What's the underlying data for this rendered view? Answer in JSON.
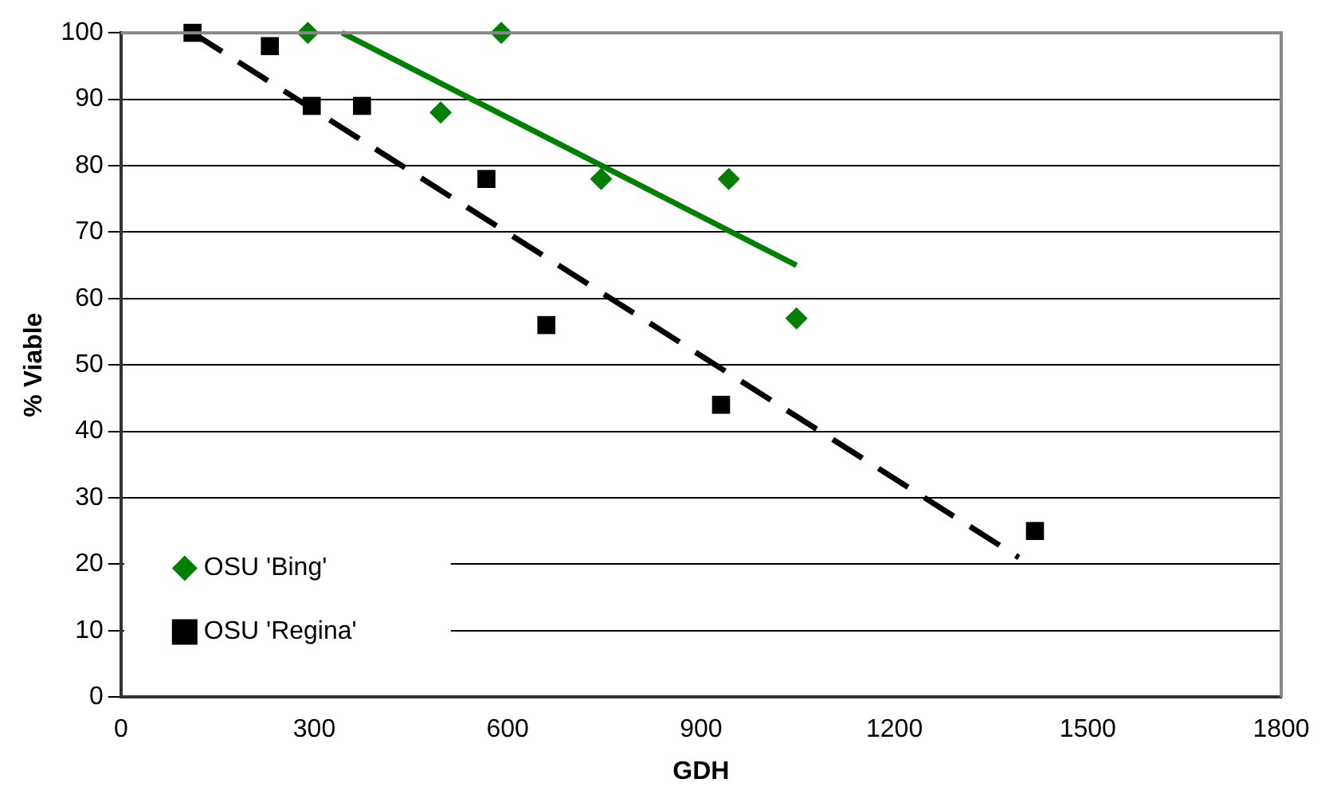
{
  "chart_data": {
    "type": "scatter",
    "xlabel": "GDH",
    "ylabel": "% Viable",
    "xlim": [
      0,
      1800
    ],
    "xticks": [
      0,
      300,
      600,
      900,
      1200,
      1500,
      1800
    ],
    "ylim": [
      0,
      100
    ],
    "yticks": [
      0,
      10,
      20,
      30,
      40,
      50,
      60,
      70,
      80,
      90,
      100
    ],
    "grid": "y",
    "legend": "bottom left",
    "series": [
      {
        "name": "OSU 'Bing'",
        "color": "#008000",
        "marker": "diamond",
        "x": [
          290,
          590,
          496,
          745,
          943,
          1048
        ],
        "values": [
          100,
          100,
          88,
          78,
          78,
          57
        ]
      },
      {
        "name": "OSU 'Regina'",
        "color": "#000000",
        "marker": "square",
        "x": [
          111,
          231,
          296,
          374,
          567,
          660,
          931,
          1418
        ],
        "values": [
          100,
          98,
          89,
          89,
          78,
          56,
          44,
          25
        ]
      },
      {
        "type": "line",
        "color": "#008000",
        "marker": "none",
        "line_style": "solid",
        "x": [
          343,
          1048
        ],
        "values": [
          100,
          65
        ]
      },
      {
        "type": "line",
        "color": "#000000",
        "marker": "none",
        "line_style": "dashed",
        "x": [
          111,
          1393
        ],
        "values": [
          100,
          21
        ]
      }
    ]
  }
}
